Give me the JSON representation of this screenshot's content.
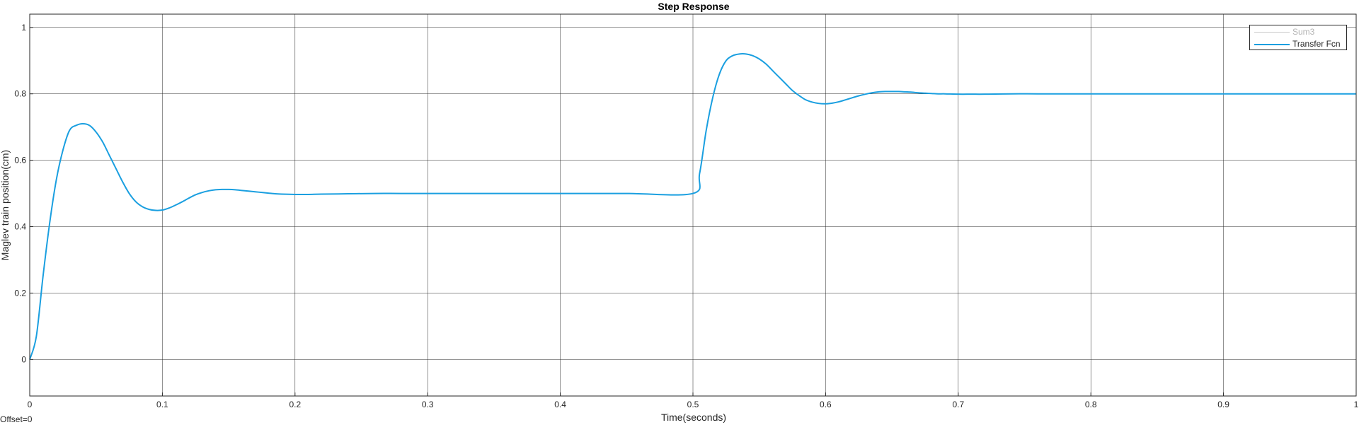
{
  "offset_label": "Offset=0",
  "chart_data": {
    "type": "line",
    "title": "Step Response",
    "xlabel": "Time(seconds)",
    "ylabel": "Maglev train position(cm)",
    "xlim": [
      0,
      1
    ],
    "ylim": [
      -0.11,
      1.04
    ],
    "grid": true,
    "legend_position": "top-right",
    "x_ticks": [
      0,
      0.1,
      0.2,
      0.3,
      0.4,
      0.5,
      0.6,
      0.7,
      0.8,
      0.9,
      1
    ],
    "x_tick_labels": [
      "0",
      "0.1",
      "0.2",
      "0.3",
      "0.4",
      "0.5",
      "0.6",
      "0.7",
      "0.8",
      "0.9",
      "1"
    ],
    "y_ticks": [
      0,
      0.2,
      0.4,
      0.6,
      0.8,
      1
    ],
    "y_tick_labels": [
      "0",
      "0.2",
      "0.4",
      "0.6",
      "0.8",
      "1"
    ],
    "series": [
      {
        "name": "Sum3",
        "color": "#c8c8c8",
        "x": [],
        "y": []
      },
      {
        "name": "Transfer Fcn",
        "color": "#1a9fe0",
        "x": [
          0,
          0.005,
          0.01,
          0.015,
          0.02,
          0.025,
          0.03,
          0.035,
          0.04,
          0.045,
          0.05,
          0.055,
          0.06,
          0.065,
          0.07,
          0.075,
          0.08,
          0.085,
          0.09,
          0.095,
          0.1,
          0.105,
          0.11,
          0.115,
          0.12,
          0.125,
          0.13,
          0.135,
          0.14,
          0.145,
          0.15,
          0.155,
          0.16,
          0.165,
          0.17,
          0.175,
          0.18,
          0.185,
          0.19,
          0.2,
          0.21,
          0.22,
          0.24,
          0.26,
          0.28,
          0.3,
          0.35,
          0.4,
          0.45,
          0.5,
          0.505,
          0.51,
          0.515,
          0.52,
          0.525,
          0.53,
          0.535,
          0.54,
          0.545,
          0.55,
          0.555,
          0.56,
          0.565,
          0.57,
          0.575,
          0.58,
          0.585,
          0.59,
          0.595,
          0.6,
          0.605,
          0.61,
          0.615,
          0.62,
          0.625,
          0.63,
          0.635,
          0.64,
          0.645,
          0.65,
          0.655,
          0.66,
          0.665,
          0.67,
          0.675,
          0.68,
          0.685,
          0.69,
          0.7,
          0.71,
          0.72,
          0.74,
          0.76,
          0.78,
          0.8,
          0.85,
          0.9,
          0.95,
          1
        ],
        "y": [
          0,
          0.07,
          0.25,
          0.41,
          0.54,
          0.63,
          0.69,
          0.705,
          0.71,
          0.705,
          0.685,
          0.655,
          0.615,
          0.575,
          0.535,
          0.5,
          0.475,
          0.46,
          0.452,
          0.449,
          0.45,
          0.456,
          0.465,
          0.475,
          0.486,
          0.496,
          0.503,
          0.508,
          0.511,
          0.512,
          0.512,
          0.511,
          0.509,
          0.507,
          0.505,
          0.503,
          0.501,
          0.499,
          0.498,
          0.497,
          0.497,
          0.498,
          0.499,
          0.5,
          0.5,
          0.5,
          0.5,
          0.5,
          0.5,
          0.5,
          0.56,
          0.69,
          0.79,
          0.86,
          0.9,
          0.915,
          0.92,
          0.92,
          0.915,
          0.905,
          0.89,
          0.87,
          0.85,
          0.83,
          0.81,
          0.795,
          0.782,
          0.775,
          0.771,
          0.77,
          0.772,
          0.776,
          0.782,
          0.788,
          0.794,
          0.799,
          0.803,
          0.806,
          0.807,
          0.807,
          0.807,
          0.806,
          0.805,
          0.803,
          0.802,
          0.801,
          0.8,
          0.8,
          0.799,
          0.799,
          0.799,
          0.8,
          0.8,
          0.8,
          0.8,
          0.8,
          0.8,
          0.8,
          0.8
        ]
      }
    ]
  }
}
